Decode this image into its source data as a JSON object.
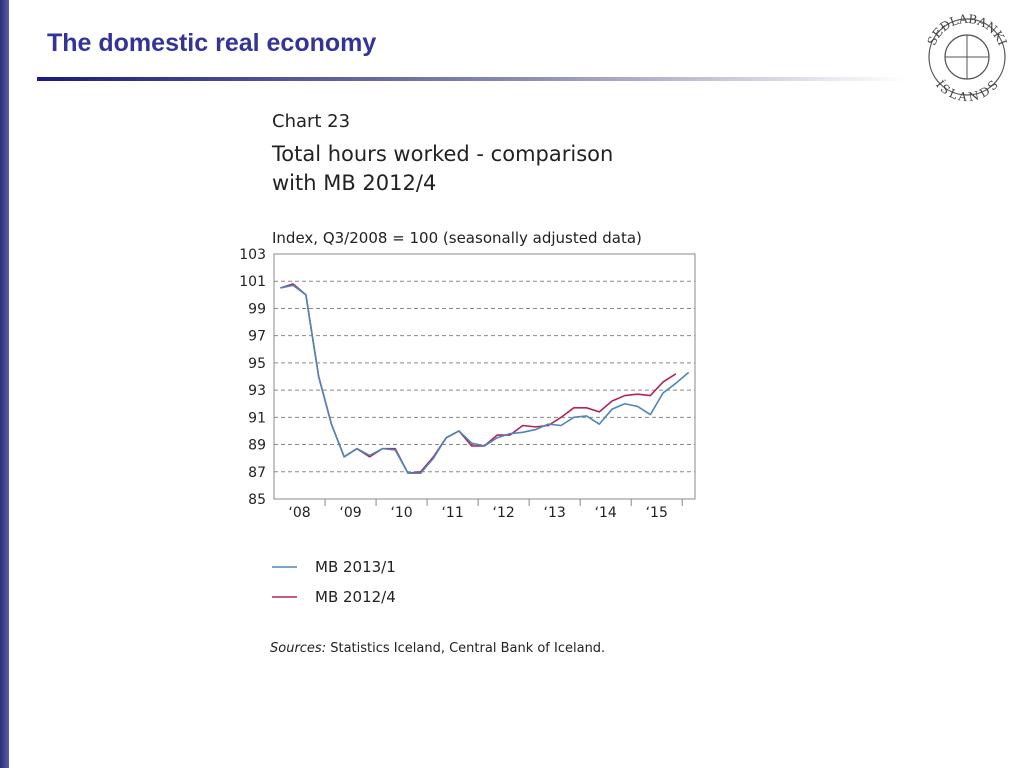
{
  "slide": {
    "title": "The domestic real economy"
  },
  "logo": {
    "top": "SEÐLABANKI",
    "bottom": "ÍSLANDS"
  },
  "chart_data": {
    "type": "line",
    "chart_label": "Chart 23",
    "title_lines": [
      "Total hours worked - comparison",
      "with MB 2012/4"
    ],
    "y_axis_label": "Index, Q3/2008 = 100 (seasonally adjusted data)",
    "x": [
      2008.125,
      2008.375,
      2008.625,
      2008.875,
      2009.125,
      2009.375,
      2009.625,
      2009.875,
      2010.125,
      2010.375,
      2010.625,
      2010.875,
      2011.125,
      2011.375,
      2011.625,
      2011.875,
      2012.125,
      2012.375,
      2012.625,
      2012.875,
      2013.125,
      2013.375,
      2013.625,
      2013.875,
      2014.125,
      2014.375,
      2014.625,
      2014.875,
      2015.125,
      2015.375,
      2015.625,
      2015.875,
      2016.125
    ],
    "series": [
      {
        "name": "MB 2013/1",
        "color": "#4f86b8",
        "values": [
          100.5,
          100.7,
          100.0,
          94.0,
          90.5,
          88.1,
          88.7,
          88.2,
          88.7,
          88.6,
          86.9,
          86.9,
          88.0,
          89.5,
          90.0,
          89.1,
          88.9,
          89.5,
          89.8,
          89.9,
          90.1,
          90.5,
          90.4,
          91.0,
          91.1,
          90.5,
          91.6,
          92.0,
          91.8,
          91.2,
          92.8,
          93.5,
          94.3
        ]
      },
      {
        "name": "MB 2012/4",
        "color": "#b0245e",
        "values": [
          100.5,
          100.8,
          100.0,
          94.0,
          90.5,
          88.1,
          88.7,
          88.1,
          88.7,
          88.7,
          86.9,
          87.0,
          88.1,
          89.5,
          90.0,
          88.9,
          88.9,
          89.7,
          89.7,
          90.4,
          90.3,
          90.4,
          91.0,
          91.7,
          91.7,
          91.4,
          92.2,
          92.6,
          92.7,
          92.6,
          93.6,
          94.2,
          null
        ]
      }
    ],
    "xlim": [
      2008,
      2016.25
    ],
    "xticks": [
      {
        "value": 2008.5,
        "label": "‘08"
      },
      {
        "value": 2009.5,
        "label": "‘09"
      },
      {
        "value": 2010.5,
        "label": "‘10"
      },
      {
        "value": 2011.5,
        "label": "‘11"
      },
      {
        "value": 2012.5,
        "label": "‘12"
      },
      {
        "value": 2013.5,
        "label": "‘13"
      },
      {
        "value": 2014.5,
        "label": "‘14"
      },
      {
        "value": 2015.5,
        "label": "‘15"
      }
    ],
    "ylim": [
      85,
      103
    ],
    "yticks": [
      85,
      87,
      89,
      91,
      93,
      95,
      97,
      99,
      101,
      103
    ],
    "grid": true,
    "sources_label": "Sources:",
    "sources_text": " Statistics Iceland, Central Bank of Iceland."
  }
}
